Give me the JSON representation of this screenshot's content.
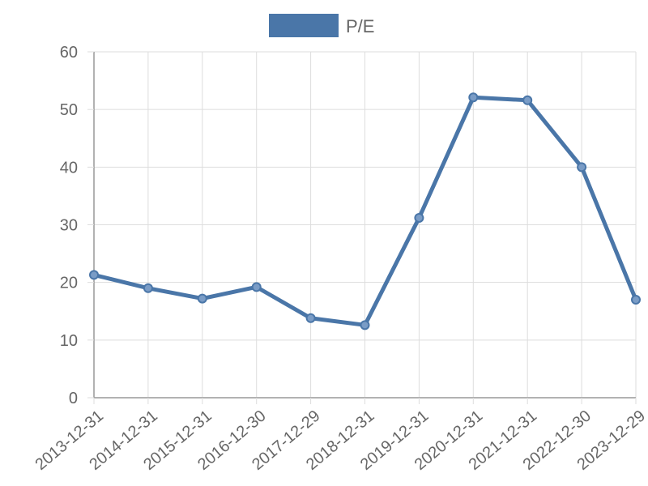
{
  "chart_data": {
    "type": "line",
    "title": "",
    "xlabel": "",
    "ylabel": "",
    "categories": [
      "2013-12-31",
      "2014-12-31",
      "2015-12-31",
      "2016-12-30",
      "2017-12-29",
      "2018-12-31",
      "2019-12-31",
      "2020-12-31",
      "2021-12-31",
      "2022-12-30",
      "2023-12-29"
    ],
    "series": [
      {
        "name": "P/E",
        "values": [
          21.3,
          19.0,
          17.2,
          19.2,
          13.8,
          12.6,
          31.2,
          52.1,
          51.6,
          40.0,
          17.0
        ]
      }
    ],
    "ylim": [
      0,
      60
    ],
    "yticks": [
      0,
      10,
      20,
      30,
      40,
      50,
      60
    ],
    "grid": true,
    "legend": "top-center",
    "colors": {
      "line": "#4a76a8",
      "point_fill": "#7a9cc6",
      "grid": "#dddddd",
      "axis": "#999999",
      "text": "#666666"
    }
  }
}
